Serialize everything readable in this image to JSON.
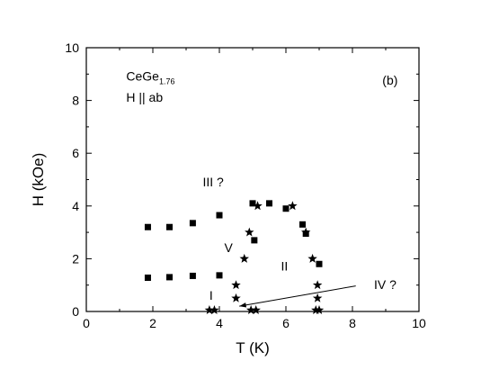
{
  "chart_data": {
    "type": "scatter",
    "title": "",
    "xlabel": "T (K)",
    "ylabel": "H (kOe)",
    "xlim": [
      0,
      10
    ],
    "ylim": [
      0,
      10
    ],
    "xticks": [
      0,
      2,
      4,
      6,
      8,
      10
    ],
    "yticks": [
      0,
      2,
      4,
      6,
      8,
      10
    ],
    "grid": false,
    "legend": "none",
    "series": [
      {
        "marker": "square",
        "color": "#000000",
        "points": [
          [
            1.85,
            3.2
          ],
          [
            2.5,
            3.2
          ],
          [
            3.2,
            3.35
          ],
          [
            4.0,
            3.65
          ],
          [
            5.0,
            4.1
          ],
          [
            5.5,
            4.1
          ],
          [
            6.0,
            3.9
          ],
          [
            6.5,
            3.3
          ],
          [
            5.05,
            2.7
          ],
          [
            6.6,
            2.95
          ],
          [
            7.0,
            1.8
          ],
          [
            1.85,
            1.28
          ],
          [
            2.5,
            1.3
          ],
          [
            3.2,
            1.35
          ],
          [
            4.0,
            1.37
          ]
        ]
      },
      {
        "marker": "star",
        "color": "#000000",
        "points": [
          [
            5.15,
            4.0
          ],
          [
            6.2,
            4.0
          ],
          [
            4.9,
            3.0
          ],
          [
            6.6,
            3.0
          ],
          [
            4.75,
            2.0
          ],
          [
            6.8,
            2.0
          ],
          [
            4.5,
            1.0
          ],
          [
            6.95,
            1.0
          ],
          [
            4.5,
            0.5
          ],
          [
            6.95,
            0.5
          ],
          [
            3.7,
            0.05
          ],
          [
            3.85,
            0.05
          ],
          [
            4.95,
            0.05
          ],
          [
            5.1,
            0.05
          ],
          [
            6.9,
            0.05
          ],
          [
            7.0,
            0.05
          ]
        ]
      }
    ],
    "lines": [
      {
        "from": [
          4.6,
          0.2
        ],
        "to": [
          8.1,
          0.97
        ]
      }
    ],
    "annotations": [
      {
        "text": "CeGe",
        "sub": "1.76",
        "x": 1.2,
        "y": 8.75
      },
      {
        "text": "H || ab",
        "x": 1.2,
        "y": 7.95
      },
      {
        "text": "(b)",
        "x": 8.9,
        "y": 8.6
      },
      {
        "text": "III ?",
        "x": 3.5,
        "y": 4.75
      },
      {
        "text": "V",
        "x": 4.15,
        "y": 2.25
      },
      {
        "text": "II",
        "x": 5.85,
        "y": 1.55
      },
      {
        "text": "I",
        "x": 3.7,
        "y": 0.45
      },
      {
        "text": "IV ?",
        "x": 8.65,
        "y": 0.85
      }
    ]
  }
}
